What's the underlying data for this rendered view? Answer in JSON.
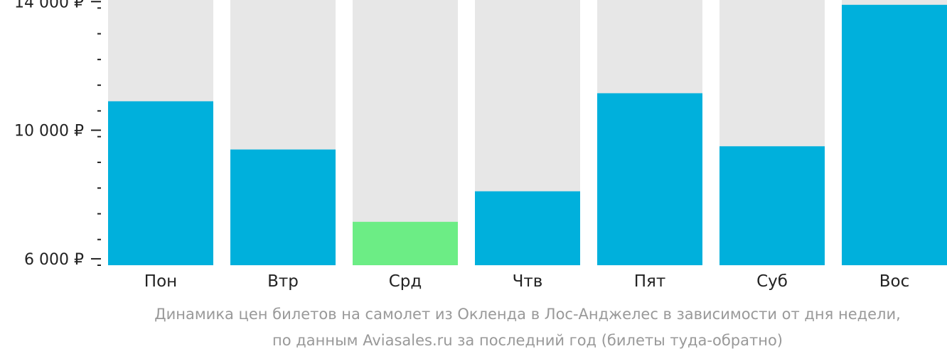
{
  "chart_data": {
    "type": "bar",
    "categories": [
      "Пон",
      "Втр",
      "Срд",
      "Чтв",
      "Пят",
      "Суб",
      "Вос"
    ],
    "values": [
      10900,
      9400,
      7150,
      8100,
      11150,
      9500,
      13900
    ],
    "ylim": [
      5800,
      14050
    ],
    "y_ticks": [
      {
        "value": 6000,
        "label": "6 000 ₽"
      },
      {
        "value": 10000,
        "label": "10 000 ₽"
      },
      {
        "value": 14000,
        "label": "14 000 ₽"
      }
    ],
    "y_minor_step": 800,
    "colors": {
      "bar": "#00b0dc",
      "highlight": "#6ced85",
      "background_bar": "#e7e7e7",
      "axis": "#222222"
    },
    "highlight_category": "Срд"
  },
  "caption": {
    "line1": "Динамика цен билетов на самолет из Окленда в Лос-Анджелес в зависимости от дня недели,",
    "line2": "по данным Aviasales.ru за последний год (билеты туда-обратно)"
  }
}
